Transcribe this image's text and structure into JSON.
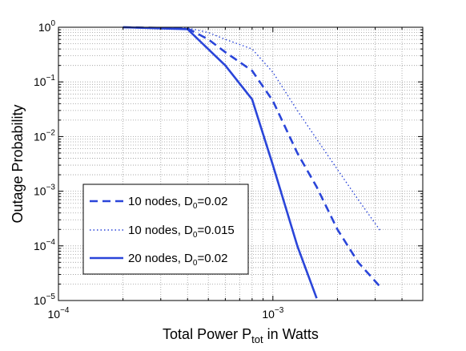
{
  "chart_data": {
    "type": "line",
    "xscale": "log",
    "yscale": "log",
    "xlim": [
      0.0001,
      0.005
    ],
    "ylim": [
      1e-05,
      1
    ],
    "grid": true,
    "xlabel": {
      "before": "Total Power P",
      "sub": "tot",
      "after": " in Watts"
    },
    "ylabel": "Outage Probability",
    "xticks": [
      {
        "value": 0.0001,
        "base": "10",
        "exp": "−4"
      },
      {
        "value": 0.001,
        "base": "10",
        "exp": "−3"
      }
    ],
    "yticks": [
      {
        "value": 1,
        "base": "10",
        "exp": "0"
      },
      {
        "value": 0.1,
        "base": "10",
        "exp": "−1"
      },
      {
        "value": 0.01,
        "base": "10",
        "exp": "−2"
      },
      {
        "value": 0.001,
        "base": "10",
        "exp": "−3"
      },
      {
        "value": 0.0001,
        "base": "10",
        "exp": "−4"
      },
      {
        "value": 1e-05,
        "base": "10",
        "exp": "−5"
      }
    ],
    "legend_position": "lower-left",
    "series": [
      {
        "name": "10 nodes, D0=0.02",
        "label_parts": {
          "before": "10 nodes, D",
          "sub": "0",
          "after": "=0.02"
        },
        "style": "dashed",
        "color": "#2a45d9",
        "x": [
          0.0002,
          0.0004,
          0.0005,
          0.0006,
          0.0008,
          0.001,
          0.0013,
          0.0016,
          0.002,
          0.0025,
          0.0032
        ],
        "y": [
          1,
          0.95,
          0.6,
          0.35,
          0.16,
          0.045,
          0.005,
          0.0012,
          0.0002,
          5e-05,
          1.7e-05
        ]
      },
      {
        "name": "10 nodes, D0=0.015",
        "label_parts": {
          "before": "10 nodes, D",
          "sub": "0",
          "after": "=0.015"
        },
        "style": "dotted",
        "color": "#2a45d9",
        "x": [
          0.0002,
          0.0004,
          0.0005,
          0.0006,
          0.0008,
          0.001,
          0.0013,
          0.0016,
          0.002,
          0.0025,
          0.0032
        ],
        "y": [
          1,
          0.97,
          0.8,
          0.6,
          0.4,
          0.15,
          0.03,
          0.009,
          0.0025,
          0.0007,
          0.00018
        ]
      },
      {
        "name": "20 nodes, D0=0.02",
        "label_parts": {
          "before": "20 nodes, D",
          "sub": "0",
          "after": "=0.02"
        },
        "style": "solid",
        "color": "#2a45d9",
        "x": [
          0.0002,
          0.0004,
          0.0006,
          0.0008,
          0.001,
          0.0013,
          0.0016
        ],
        "y": [
          1,
          0.92,
          0.2,
          0.048,
          0.003,
          0.0001,
          1.1e-05
        ]
      }
    ]
  }
}
